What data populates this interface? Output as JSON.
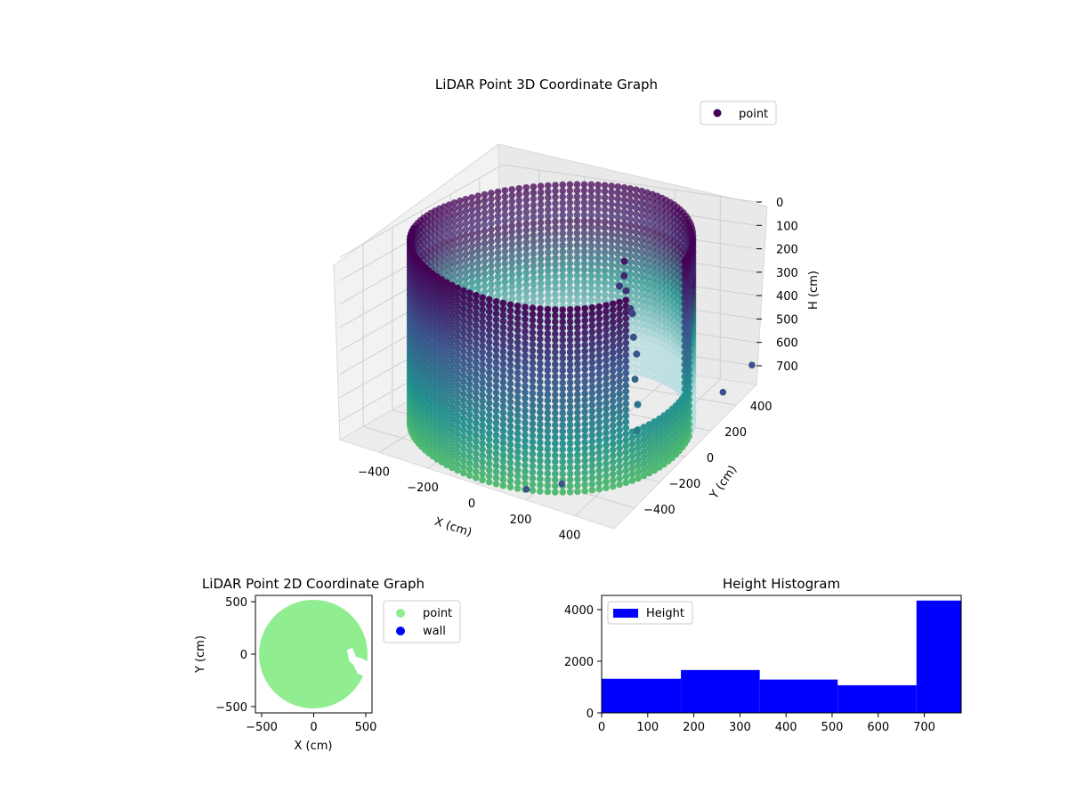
{
  "chart_data": [
    {
      "type": "scatter3d",
      "title": "LiDAR Point 3D Coordinate Graph",
      "xlabel": "X (cm)",
      "ylabel": "Y (cm)",
      "zlabel": "H (cm)",
      "xticks": [
        "−400",
        "−200",
        "0",
        "200",
        "400"
      ],
      "yticks": [
        "−400",
        "−200",
        "0",
        "200",
        "400"
      ],
      "zticks": [
        "0",
        "100",
        "200",
        "300",
        "400",
        "500",
        "600",
        "700"
      ],
      "xlim": [
        -560,
        560
      ],
      "ylim": [
        -560,
        560
      ],
      "zlim": [
        780,
        0
      ],
      "z_inverted": true,
      "legend": {
        "entries": [
          "point"
        ],
        "placement": "top-right"
      },
      "colormap": [
        "#440154",
        "#3b528b",
        "#21918c",
        "#5ec962",
        "#b5dde0"
      ],
      "wall_radius": 520,
      "wall_height_range": [
        0,
        780
      ],
      "grid": true
    },
    {
      "type": "scatter",
      "title": "LiDAR Point 2D Coordinate Graph",
      "xlabel": "X (cm)",
      "ylabel": "Y (cm)",
      "xticks": [
        "−500",
        "0",
        "500"
      ],
      "yticks": [
        "500",
        "0",
        "−500"
      ],
      "xlim": [
        -560,
        560
      ],
      "ylim": [
        -560,
        560
      ],
      "series": [
        {
          "name": "point",
          "color": "#90ee90",
          "shape": "disk",
          "radius": 520
        },
        {
          "name": "wall",
          "color": "#0000ff"
        }
      ],
      "legend": {
        "entries": [
          "point",
          "wall"
        ],
        "placement": "outside-right"
      }
    },
    {
      "type": "bar",
      "title": "Height Histogram",
      "xticks": [
        "0",
        "100",
        "200",
        "300",
        "400",
        "500",
        "600",
        "700"
      ],
      "yticks": [
        "0",
        "2000",
        "4000"
      ],
      "xlim": [
        0,
        780
      ],
      "ylim": [
        0,
        4550
      ],
      "bins": [
        {
          "x0": 0,
          "x1": 172,
          "value": 1320
        },
        {
          "x0": 172,
          "x1": 343,
          "value": 1660
        },
        {
          "x0": 343,
          "x1": 512,
          "value": 1290
        },
        {
          "x0": 512,
          "x1": 683,
          "value": 1070
        },
        {
          "x0": 683,
          "x1": 780,
          "value": 4350
        }
      ],
      "color": "#0000ff",
      "legend": {
        "entries": [
          "Height"
        ],
        "placement": "top-left"
      }
    }
  ]
}
